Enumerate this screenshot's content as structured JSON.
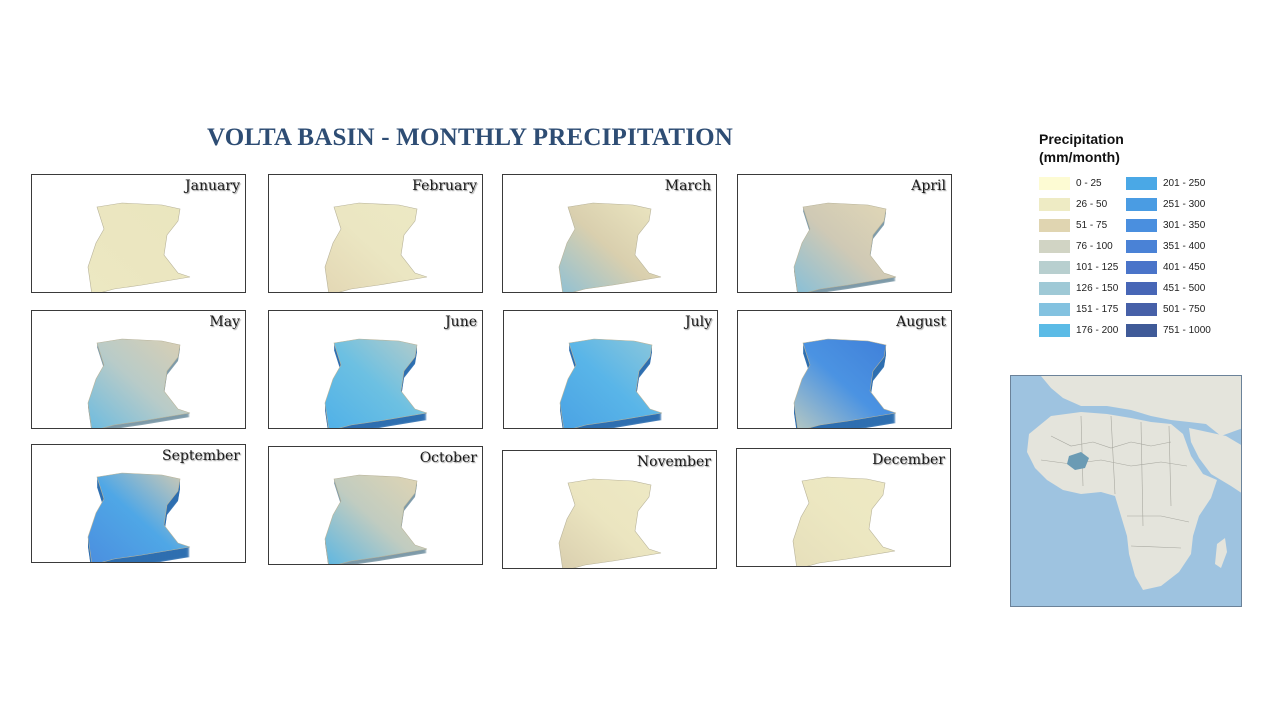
{
  "title": "VOLTA BASIN - MONTHLY PRECIPITATION",
  "legend": {
    "title": "Precipitation (mm/month)",
    "classes": [
      {
        "label": "0 - 25",
        "color": "#fdfbd3"
      },
      {
        "label": "26 - 50",
        "color": "#eeebc4"
      },
      {
        "label": "51 - 75",
        "color": "#e0d5b1"
      },
      {
        "label": "76 - 100",
        "color": "#d1d4c4"
      },
      {
        "label": "101 - 125",
        "color": "#b8cfcf"
      },
      {
        "label": "126 - 150",
        "color": "#9fc9d6"
      },
      {
        "label": "151 - 175",
        "color": "#83c2e0"
      },
      {
        "label": "176 - 200",
        "color": "#5bbbe6"
      },
      {
        "label": "201 - 250",
        "color": "#4aa8e6"
      },
      {
        "label": "251 - 300",
        "color": "#4a9ce3"
      },
      {
        "label": "301 - 350",
        "color": "#4a8fdf"
      },
      {
        "label": "351 - 400",
        "color": "#4a82d6"
      },
      {
        "label": "401 - 450",
        "color": "#4a74c9"
      },
      {
        "label": "451 - 500",
        "color": "#4766b6"
      },
      {
        "label": "501 - 750",
        "color": "#4660a8"
      },
      {
        "label": "751 - 1000",
        "color": "#3f5a98"
      }
    ]
  },
  "months": [
    {
      "name": "January",
      "colors": [
        "#ece8c2",
        "#ebe6c0",
        "#eae6be"
      ],
      "relief": 0
    },
    {
      "name": "February",
      "colors": [
        "#e3d7b4",
        "#ebe6c2",
        "#ece9c4"
      ],
      "relief": 0
    },
    {
      "name": "March",
      "colors": [
        "#8fc0d4",
        "#d9cfae",
        "#ece7c2"
      ],
      "relief": 0
    },
    {
      "name": "April",
      "colors": [
        "#86bfd8",
        "#cfc9b5",
        "#e2d8b6"
      ],
      "relief": 1
    },
    {
      "name": "May",
      "colors": [
        "#6bbbe0",
        "#b8cbc8",
        "#dccfb2"
      ],
      "relief": 1
    },
    {
      "name": "June",
      "colors": [
        "#4fb0e8",
        "#6cc0e2",
        "#b9ccc8"
      ],
      "relief": 2
    },
    {
      "name": "July",
      "colors": [
        "#4aa2e4",
        "#59b5e8",
        "#8fc8da"
      ],
      "relief": 2
    },
    {
      "name": "August",
      "colors": [
        "#b8c9c2",
        "#4b93e2",
        "#3f7ed8"
      ],
      "relief": 3
    },
    {
      "name": "September",
      "colors": [
        "#4b8edf",
        "#4fa7e6",
        "#d8ccb0"
      ],
      "relief": 3
    },
    {
      "name": "October",
      "colors": [
        "#5bb6e2",
        "#c1ccc0",
        "#e2d5b2"
      ],
      "relief": 1
    },
    {
      "name": "November",
      "colors": [
        "#d9ceae",
        "#ebe5c0",
        "#eee9c4"
      ],
      "relief": 0
    },
    {
      "name": "December",
      "colors": [
        "#e6dfbb",
        "#ece7c1",
        "#eee9c4"
      ],
      "relief": 0
    }
  ],
  "locator": {
    "ocean_color": "#9ec3e0",
    "land_color": "#e4e4dc",
    "highlight_color": "#6b9bb4"
  }
}
